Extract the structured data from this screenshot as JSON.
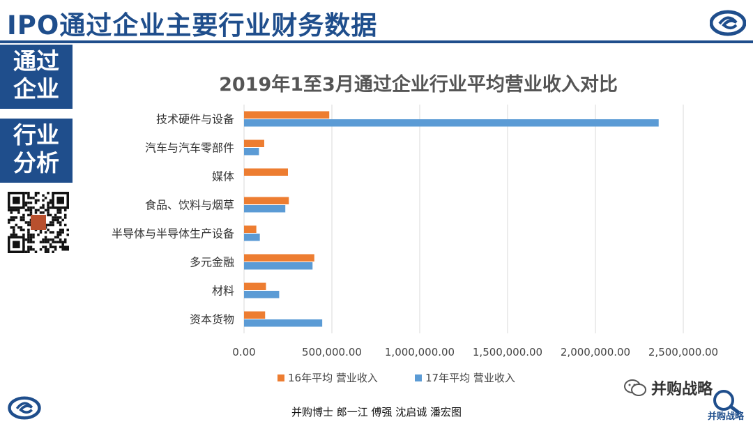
{
  "header": {
    "title": "IPO通过企业主要行业财务数据"
  },
  "sidebar": {
    "block1": [
      "通过",
      "企业"
    ],
    "block2": [
      "行业",
      "分析"
    ]
  },
  "colors": {
    "brand": "#1f4e8c",
    "series_2016": "#ed7d31",
    "series_2017": "#5b9bd5"
  },
  "footer": {
    "authors": "并购博士 郎一江 傅强 沈启诚 潘宏图",
    "wechat_brand": "并购战略",
    "corner_brand": "并购战略"
  },
  "chart_data": {
    "type": "bar",
    "orientation": "horizontal",
    "title": "2019年1至3月通过企业行业平均营业收入对比",
    "categories": [
      "技术硬件与设备",
      "汽车与汽车零部件",
      "媒体",
      "食品、饮料与烟草",
      "半导体与半导体生产设备",
      "多元金融",
      "材料",
      "资本货物"
    ],
    "series": [
      {
        "name": "16年平均 营业收入",
        "values": [
          485000,
          115000,
          250000,
          255000,
          70000,
          400000,
          125000,
          120000
        ]
      },
      {
        "name": "17年平均 营业收入",
        "values": [
          2360000,
          85000,
          0,
          235000,
          90000,
          390000,
          200000,
          445000
        ]
      }
    ],
    "xlim": [
      0,
      2500000
    ],
    "x_ticks": [
      "0.00",
      "500,000.00",
      "1,000,000.00",
      "1,500,000.00",
      "2,000,000.00",
      "2,500,000.00"
    ],
    "grid": true,
    "legend_position": "bottom"
  }
}
